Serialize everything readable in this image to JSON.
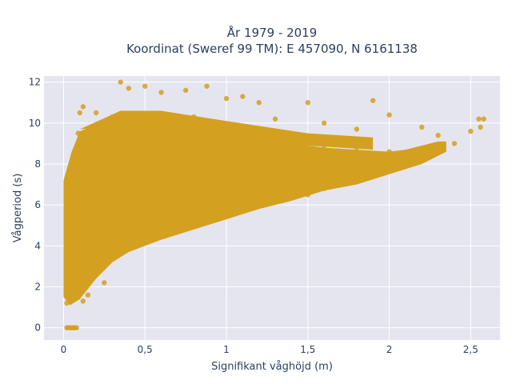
{
  "chart_data": {
    "type": "scatter",
    "title": "År 1979 - 2019",
    "subtitle": "Koordinat (Sweref 99 TM): E 457090, N 6161138",
    "xlabel": "Signifikant våghöjd (m)",
    "ylabel": "Vågperiod (s)",
    "xlim": [
      -0.12,
      2.68
    ],
    "ylim": [
      -0.6,
      12.3
    ],
    "x_ticks": [
      0,
      0.5,
      1,
      1.5,
      2,
      2.5
    ],
    "x_tick_labels": [
      "0",
      "0,5",
      "1",
      "1,5",
      "2",
      "2,5"
    ],
    "y_ticks": [
      0,
      2,
      4,
      6,
      8,
      10,
      12
    ],
    "y_tick_labels": [
      "0",
      "2",
      "4",
      "6",
      "8",
      "10",
      "12"
    ],
    "grid": true,
    "background": "#e5e5f0",
    "marker_color": "#d4a020",
    "series": [
      {
        "points": [
          [
            0.02,
            0.0
          ],
          [
            0.03,
            0.0
          ],
          [
            0.04,
            0.0
          ],
          [
            0.05,
            0.0
          ],
          [
            0.06,
            0.0
          ],
          [
            0.07,
            0.0
          ],
          [
            0.08,
            0.0
          ],
          [
            0.02,
            1.2
          ],
          [
            0.05,
            1.4
          ],
          [
            0.08,
            1.8
          ],
          [
            0.1,
            2.2
          ],
          [
            0.04,
            3.0
          ],
          [
            0.03,
            4.5
          ],
          [
            0.05,
            6.0
          ],
          [
            0.06,
            7.0
          ],
          [
            0.08,
            8.0
          ],
          [
            0.07,
            8.5
          ],
          [
            0.09,
            9.5
          ],
          [
            0.1,
            10.5
          ],
          [
            0.12,
            10.8
          ],
          [
            0.15,
            2.5
          ],
          [
            0.2,
            3.0
          ],
          [
            0.25,
            3.2
          ],
          [
            0.3,
            3.5
          ],
          [
            0.35,
            3.7
          ],
          [
            0.4,
            4.0
          ],
          [
            0.45,
            4.1
          ],
          [
            0.5,
            4.3
          ],
          [
            0.6,
            4.6
          ],
          [
            0.7,
            4.9
          ],
          [
            0.8,
            5.1
          ],
          [
            0.9,
            5.3
          ],
          [
            1.0,
            5.6
          ],
          [
            1.1,
            5.8
          ],
          [
            1.2,
            6.0
          ],
          [
            1.3,
            6.2
          ],
          [
            1.4,
            6.4
          ],
          [
            1.5,
            6.5
          ],
          [
            1.6,
            6.8
          ],
          [
            1.7,
            7.0
          ],
          [
            1.8,
            7.3
          ],
          [
            1.9,
            7.6
          ],
          [
            2.0,
            7.8
          ],
          [
            2.1,
            8.0
          ],
          [
            2.2,
            8.3
          ],
          [
            2.3,
            8.6
          ],
          [
            2.4,
            9.0
          ],
          [
            2.5,
            9.6
          ],
          [
            2.55,
            10.2
          ],
          [
            2.58,
            10.2
          ],
          [
            2.56,
            9.8
          ],
          [
            2.3,
            9.4
          ],
          [
            2.2,
            9.8
          ],
          [
            0.35,
            12.0
          ],
          [
            0.4,
            11.7
          ],
          [
            0.5,
            11.8
          ],
          [
            0.6,
            11.5
          ],
          [
            0.75,
            11.6
          ],
          [
            0.88,
            11.8
          ],
          [
            1.0,
            11.2
          ],
          [
            1.1,
            11.3
          ],
          [
            1.2,
            11.0
          ],
          [
            1.5,
            11.0
          ],
          [
            1.9,
            11.1
          ],
          [
            2.0,
            10.4
          ],
          [
            1.3,
            10.2
          ],
          [
            1.6,
            10.0
          ],
          [
            1.8,
            9.7
          ],
          [
            0.3,
            10.3
          ],
          [
            0.2,
            10.5
          ],
          [
            0.8,
            10.3
          ],
          [
            0.2,
            8.5
          ],
          [
            0.4,
            8.8
          ],
          [
            0.6,
            8.9
          ],
          [
            0.8,
            9.0
          ],
          [
            1.0,
            9.1
          ],
          [
            1.2,
            9.0
          ],
          [
            1.4,
            8.9
          ],
          [
            1.6,
            8.9
          ],
          [
            1.8,
            8.8
          ],
          [
            2.0,
            8.6
          ],
          [
            0.3,
            6.5
          ],
          [
            0.6,
            6.8
          ],
          [
            0.9,
            7.2
          ],
          [
            1.2,
            7.5
          ],
          [
            1.5,
            7.6
          ],
          [
            1.8,
            8.0
          ],
          [
            0.1,
            5.0
          ],
          [
            0.2,
            6.0
          ],
          [
            0.4,
            7.0
          ],
          [
            0.5,
            5.5
          ],
          [
            0.7,
            6.0
          ],
          [
            1.0,
            6.5
          ],
          [
            1.3,
            7.0
          ],
          [
            1.7,
            7.5
          ],
          [
            2.1,
            8.4
          ],
          [
            0.15,
            1.6
          ],
          [
            0.12,
            1.3
          ],
          [
            0.25,
            2.2
          ]
        ]
      }
    ]
  }
}
